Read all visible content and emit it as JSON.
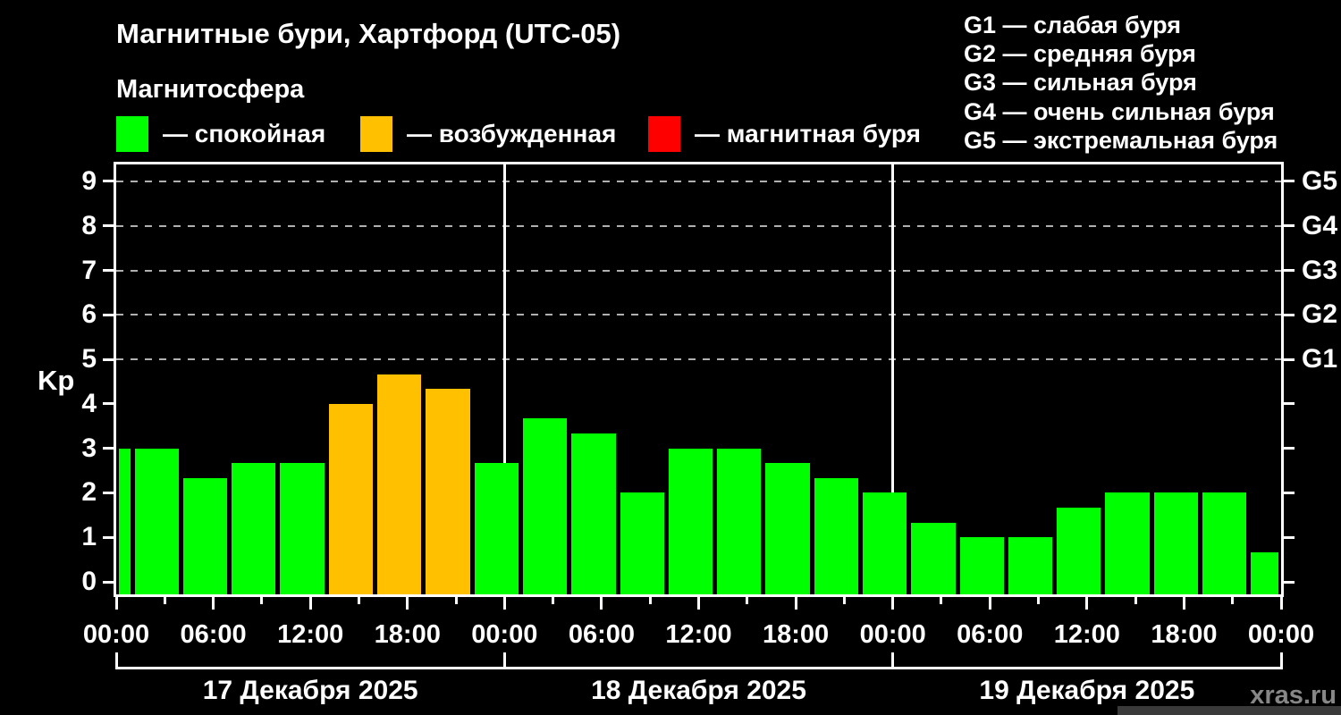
{
  "title": "Магнитные бури, Хартфорд (UTC-05)",
  "subtitle": "Магнитосфера",
  "legend": [
    {
      "label": "— спокойная",
      "state": "quiet",
      "color": "#00ff00"
    },
    {
      "label": "— возбужденная",
      "state": "excited",
      "color": "#ffc000"
    },
    {
      "label": "— магнитная буря",
      "state": "storm",
      "color": "#ff0000"
    }
  ],
  "storm_scale": [
    "G1 — слабая буря",
    "G2 — средняя буря",
    "G3 — сильная буря",
    "G4 — очень сильная буря",
    "G5 — экстремальная буря"
  ],
  "colors": {
    "quiet": "#00ff00",
    "excited": "#ffc000",
    "storm": "#ff0000",
    "axis": "#ffffff",
    "grid": "#b0b0b0",
    "watermark": "#878787",
    "background": "#000000"
  },
  "watermark": "xras.ru",
  "chart_data": {
    "type": "bar",
    "ylabel": "Kp",
    "ylim": [
      0,
      9
    ],
    "y_ticks": [
      "0",
      "1",
      "2",
      "3",
      "4",
      "5",
      "6",
      "7",
      "8",
      "9"
    ],
    "grid_levels": [
      5,
      6,
      7,
      8,
      9
    ],
    "right_axis": [
      {
        "label": "G1",
        "kp": 5
      },
      {
        "label": "G2",
        "kp": 6
      },
      {
        "label": "G3",
        "kp": 7
      },
      {
        "label": "G4",
        "kp": 8
      },
      {
        "label": "G5",
        "kp": 9
      }
    ],
    "x_total_hours": 72,
    "x_tick_step_hours": 3,
    "x_label_step_hours": 6,
    "x_tick_labels": [
      "00:00",
      "06:00",
      "12:00",
      "18:00",
      "00:00",
      "06:00",
      "12:00",
      "18:00",
      "00:00",
      "06:00",
      "12:00",
      "18:00",
      "00:00"
    ],
    "days": [
      {
        "label": "17 Декабря 2025"
      },
      {
        "label": "18 Декабря 2025"
      },
      {
        "label": "19 Декабря 2025"
      }
    ],
    "bars": [
      {
        "start": 0,
        "end": 1,
        "kp": 3.0,
        "state": "quiet"
      },
      {
        "start": 1,
        "end": 4,
        "kp": 3.0,
        "state": "quiet"
      },
      {
        "start": 4,
        "end": 7,
        "kp": 2.33,
        "state": "quiet"
      },
      {
        "start": 7,
        "end": 10,
        "kp": 2.67,
        "state": "quiet"
      },
      {
        "start": 10,
        "end": 13,
        "kp": 2.67,
        "state": "quiet"
      },
      {
        "start": 13,
        "end": 16,
        "kp": 4.0,
        "state": "excited"
      },
      {
        "start": 16,
        "end": 19,
        "kp": 4.67,
        "state": "excited"
      },
      {
        "start": 19,
        "end": 22,
        "kp": 4.33,
        "state": "excited"
      },
      {
        "start": 22,
        "end": 25,
        "kp": 2.67,
        "state": "quiet"
      },
      {
        "start": 25,
        "end": 28,
        "kp": 3.67,
        "state": "quiet"
      },
      {
        "start": 28,
        "end": 31,
        "kp": 3.33,
        "state": "quiet"
      },
      {
        "start": 31,
        "end": 34,
        "kp": 2.0,
        "state": "quiet"
      },
      {
        "start": 34,
        "end": 37,
        "kp": 3.0,
        "state": "quiet"
      },
      {
        "start": 37,
        "end": 40,
        "kp": 3.0,
        "state": "quiet"
      },
      {
        "start": 40,
        "end": 43,
        "kp": 2.67,
        "state": "quiet"
      },
      {
        "start": 43,
        "end": 46,
        "kp": 2.33,
        "state": "quiet"
      },
      {
        "start": 46,
        "end": 49,
        "kp": 2.0,
        "state": "quiet"
      },
      {
        "start": 49,
        "end": 52,
        "kp": 1.33,
        "state": "quiet"
      },
      {
        "start": 52,
        "end": 55,
        "kp": 1.0,
        "state": "quiet"
      },
      {
        "start": 55,
        "end": 58,
        "kp": 1.0,
        "state": "quiet"
      },
      {
        "start": 58,
        "end": 61,
        "kp": 1.67,
        "state": "quiet"
      },
      {
        "start": 61,
        "end": 64,
        "kp": 2.0,
        "state": "quiet"
      },
      {
        "start": 64,
        "end": 67,
        "kp": 2.0,
        "state": "quiet"
      },
      {
        "start": 67,
        "end": 70,
        "kp": 2.0,
        "state": "quiet"
      },
      {
        "start": 70,
        "end": 72,
        "kp": 0.67,
        "state": "quiet"
      }
    ]
  }
}
